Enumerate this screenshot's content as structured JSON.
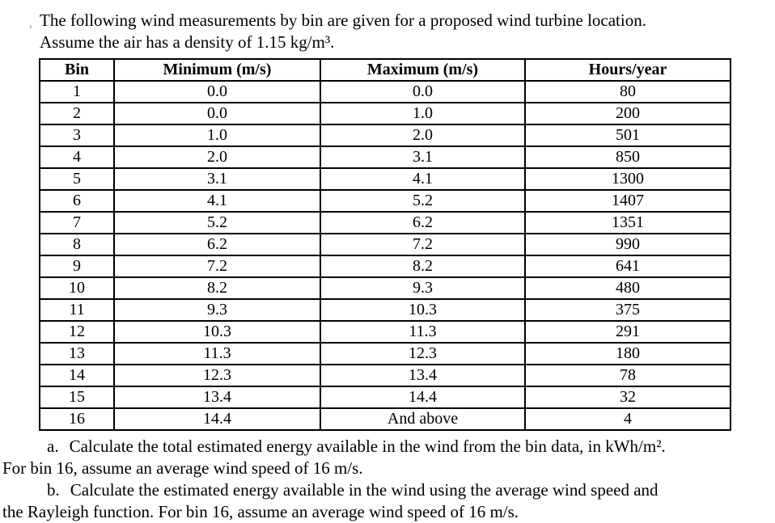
{
  "intro": {
    "line1": "The following wind measurements by bin are given for a proposed wind turbine location.",
    "line2": "Assume the air has a density of 1.15 kg/m³."
  },
  "table": {
    "headers": [
      "Bin",
      "Minimum (m/s)",
      "Maximum (m/s)",
      "Hours/year"
    ],
    "rows": [
      [
        "1",
        "0.0",
        "0.0",
        "80"
      ],
      [
        "2",
        "0.0",
        "1.0",
        "200"
      ],
      [
        "3",
        "1.0",
        "2.0",
        "501"
      ],
      [
        "4",
        "2.0",
        "3.1",
        "850"
      ],
      [
        "5",
        "3.1",
        "4.1",
        "1300"
      ],
      [
        "6",
        "4.1",
        "5.2",
        "1407"
      ],
      [
        "7",
        "5.2",
        "6.2",
        "1351"
      ],
      [
        "8",
        "6.2",
        "7.2",
        "990"
      ],
      [
        "9",
        "7.2",
        "8.2",
        "641"
      ],
      [
        "10",
        "8.2",
        "9.3",
        "480"
      ],
      [
        "11",
        "9.3",
        "10.3",
        "375"
      ],
      [
        "12",
        "10.3",
        "11.3",
        "291"
      ],
      [
        "13",
        "11.3",
        "12.3",
        "180"
      ],
      [
        "14",
        "12.3",
        "13.4",
        "78"
      ],
      [
        "15",
        "13.4",
        "14.4",
        "32"
      ],
      [
        "16",
        "14.4",
        "And above",
        "4"
      ]
    ]
  },
  "questions": [
    {
      "label": "a.",
      "line1": "Calculate the total estimated energy available in the wind from the bin data, in kWh/m².",
      "line2": "For bin 16, assume an average wind speed of 16 m/s."
    },
    {
      "label": "b.",
      "line1": "Calculate the estimated energy available in the wind using the average wind speed and",
      "line2": "the Rayleigh function. For bin 16, assume an average wind speed of 16 m/s."
    }
  ],
  "colors": {
    "text": "#000000",
    "background": "#ffffff",
    "table_border": "#000000"
  }
}
